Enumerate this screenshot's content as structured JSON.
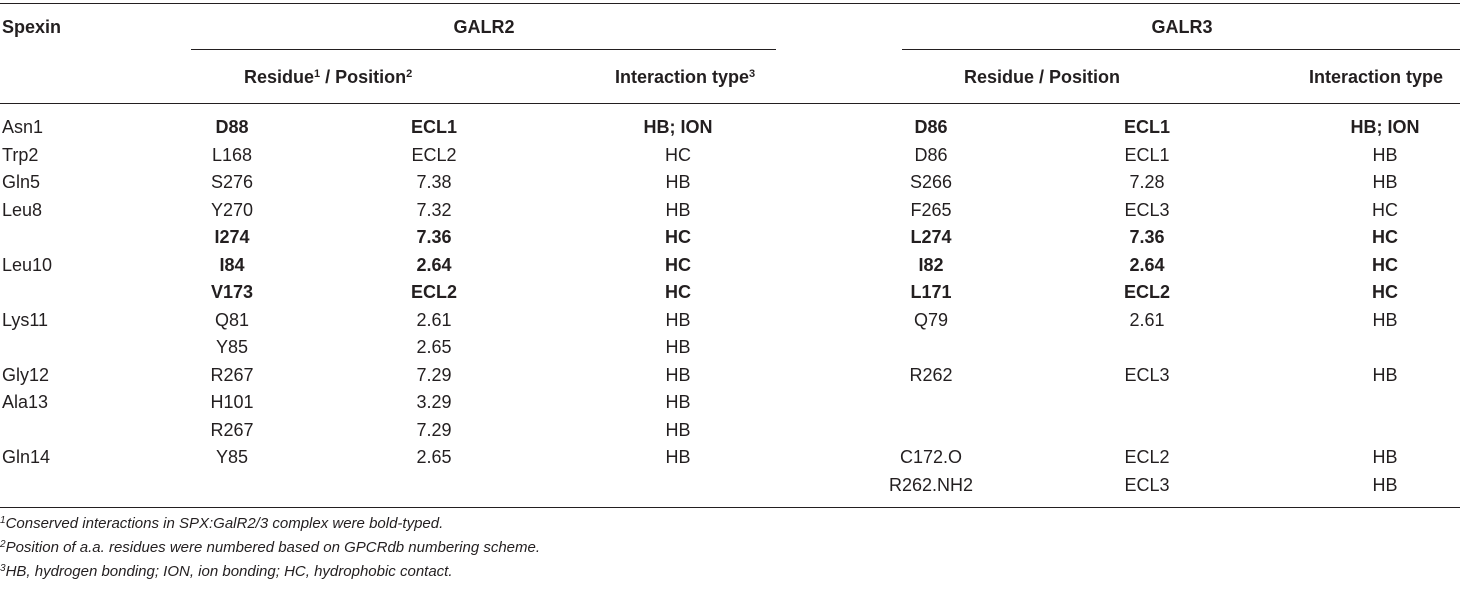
{
  "table": {
    "header": {
      "spexin": "Spexin",
      "galr2": "GALR2",
      "galr3": "GALR3",
      "galr2_residue": "Residue",
      "galr2_residue_sup": "1",
      "galr2_position": " / Position",
      "galr2_position_sup": "2",
      "galr2_interaction": "Interaction type",
      "galr2_interaction_sup": "3",
      "galr3_residue_position": "Residue / Position",
      "galr3_interaction": "Interaction type"
    },
    "rows": [
      {
        "spexin": "Asn1",
        "r2_res": "D88",
        "r2_pos": "ECL1",
        "r2_type": "HB; ION",
        "r3_res": "D86",
        "r3_pos": "ECL1",
        "r3_type": "HB; ION",
        "bold": true
      },
      {
        "spexin": "Trp2",
        "r2_res": "L168",
        "r2_pos": "ECL2",
        "r2_type": "HC",
        "r3_res": "D86",
        "r3_pos": "ECL1",
        "r3_type": "HB",
        "bold": false
      },
      {
        "spexin": "Gln5",
        "r2_res": "S276",
        "r2_pos": "7.38",
        "r2_type": "HB",
        "r3_res": "S266",
        "r3_pos": "7.28",
        "r3_type": "HB",
        "bold": false
      },
      {
        "spexin": "Leu8",
        "r2_res": "Y270",
        "r2_pos": "7.32",
        "r2_type": "HB",
        "r3_res": "F265",
        "r3_pos": "ECL3",
        "r3_type": "HC",
        "bold": false
      },
      {
        "spexin": "",
        "r2_res": "I274",
        "r2_pos": "7.36",
        "r2_type": "HC",
        "r3_res": "L274",
        "r3_pos": "7.36",
        "r3_type": "HC",
        "bold": true
      },
      {
        "spexin": "Leu10",
        "r2_res": "I84",
        "r2_pos": "2.64",
        "r2_type": "HC",
        "r3_res": "I82",
        "r3_pos": "2.64",
        "r3_type": "HC",
        "bold": true
      },
      {
        "spexin": "",
        "r2_res": "V173",
        "r2_pos": "ECL2",
        "r2_type": "HC",
        "r3_res": "L171",
        "r3_pos": "ECL2",
        "r3_type": "HC",
        "bold": true
      },
      {
        "spexin": "Lys11",
        "r2_res": "Q81",
        "r2_pos": "2.61",
        "r2_type": "HB",
        "r3_res": "Q79",
        "r3_pos": "2.61",
        "r3_type": "HB",
        "bold": false
      },
      {
        "spexin": "",
        "r2_res": "Y85",
        "r2_pos": "2.65",
        "r2_type": "HB",
        "r3_res": "",
        "r3_pos": "",
        "r3_type": "",
        "bold": false
      },
      {
        "spexin": "Gly12",
        "r2_res": "R267",
        "r2_pos": "7.29",
        "r2_type": "HB",
        "r3_res": "R262",
        "r3_pos": "ECL3",
        "r3_type": "HB",
        "bold": false
      },
      {
        "spexin": "Ala13",
        "r2_res": "H101",
        "r2_pos": "3.29",
        "r2_type": "HB",
        "r3_res": "",
        "r3_pos": "",
        "r3_type": "",
        "bold": false
      },
      {
        "spexin": "",
        "r2_res": "R267",
        "r2_pos": "7.29",
        "r2_type": "HB",
        "r3_res": "",
        "r3_pos": "",
        "r3_type": "",
        "bold": false
      },
      {
        "spexin": "Gln14",
        "r2_res": "Y85",
        "r2_pos": "2.65",
        "r2_type": "HB",
        "r3_res": "C172.O",
        "r3_pos": "ECL2",
        "r3_type": "HB",
        "bold": false
      },
      {
        "spexin": "",
        "r2_res": "",
        "r2_pos": "",
        "r2_type": "",
        "r3_res": "R262.NH2",
        "r3_pos": "ECL3",
        "r3_type": "HB",
        "bold": false
      }
    ]
  },
  "footnotes": [
    {
      "mark": "1",
      "text": "Conserved interactions in SPX:GalR2/3 complex were bold-typed."
    },
    {
      "mark": "2",
      "text": "Position of a.a. residues were numbered based on GPCRdb numbering scheme."
    },
    {
      "mark": "3",
      "text": "HB, hydrogen bonding; ION, ion bonding; HC, hydrophobic contact."
    }
  ]
}
